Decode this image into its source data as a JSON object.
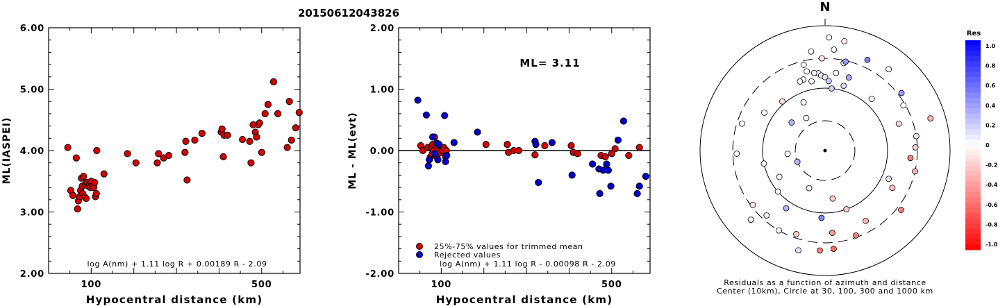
{
  "figure_title": "20150612043826",
  "chart_data": [
    {
      "type": "scatter",
      "xlabel": "Hypocentral distance (km)",
      "ylabel": "ML(IASPEI)",
      "xlim": [
        0,
        590
      ],
      "ylim": [
        2.0,
        6.0
      ],
      "x_ticks": [
        100,
        200,
        300,
        400,
        500
      ],
      "x_tick_labels": [
        "100",
        "",
        "",
        "",
        "500"
      ],
      "y_ticks": [
        2.0,
        3.0,
        4.0,
        5.0,
        6.0
      ],
      "y_tick_labels": [
        "2.00",
        "3.00",
        "4.00",
        "5.00",
        "6.00"
      ],
      "formula": "log A(nm) + 1.11 log R + 0.00189 R - 2.09",
      "series": [
        {
          "color": "#d40000",
          "points": [
            [
              45,
              4.05
            ],
            [
              52,
              3.35
            ],
            [
              57,
              3.27
            ],
            [
              65,
              3.88
            ],
            [
              68,
              3.05
            ],
            [
              70,
              3.18
            ],
            [
              73,
              3.25
            ],
            [
              75,
              3.35
            ],
            [
              77,
              3.55
            ],
            [
              79,
              3.42
            ],
            [
              80,
              3.3
            ],
            [
              82,
              3.58
            ],
            [
              84,
              3.25
            ],
            [
              86,
              3.45
            ],
            [
              88,
              3.22
            ],
            [
              90,
              3.48
            ],
            [
              93,
              3.42
            ],
            [
              96,
              3.45
            ],
            [
              98,
              3.4
            ],
            [
              100,
              3.5
            ],
            [
              103,
              3.42
            ],
            [
              106,
              3.4
            ],
            [
              108,
              3.48
            ],
            [
              110,
              3.25
            ],
            [
              112,
              3.3
            ],
            [
              113,
              4.0
            ],
            [
              130,
              3.62
            ],
            [
              185,
              3.95
            ],
            [
              205,
              3.8
            ],
            [
              255,
              3.8
            ],
            [
              258,
              3.95
            ],
            [
              270,
              3.88
            ],
            [
              282,
              3.92
            ],
            [
              320,
              3.97
            ],
            [
              322,
              4.15
            ],
            [
              325,
              3.52
            ],
            [
              343,
              4.17
            ],
            [
              360,
              4.28
            ],
            [
              405,
              4.3
            ],
            [
              407,
              4.35
            ],
            [
              410,
              3.9
            ],
            [
              412,
              4.25
            ],
            [
              420,
              4.25
            ],
            [
              455,
              4.18
            ],
            [
              472,
              4.15
            ],
            [
              475,
              3.8
            ],
            [
              480,
              4.42
            ],
            [
              485,
              4.3
            ],
            [
              488,
              4.22
            ],
            [
              492,
              4.42
            ],
            [
              495,
              4.45
            ],
            [
              500,
              3.97
            ],
            [
              508,
              4.6
            ],
            [
              515,
              4.75
            ],
            [
              528,
              5.12
            ],
            [
              538,
              4.6
            ],
            [
              560,
              4.05
            ],
            [
              565,
              4.8
            ],
            [
              570,
              4.17
            ],
            [
              580,
              4.37
            ],
            [
              588,
              4.62
            ]
          ]
        }
      ]
    },
    {
      "type": "scatter",
      "xlabel": "Hypocentral distance (km)",
      "ylabel": "ML - ML(evt)",
      "xlim": [
        0,
        590
      ],
      "ylim": [
        -2.0,
        2.0
      ],
      "x_ticks": [
        100,
        200,
        300,
        400,
        500
      ],
      "x_tick_labels": [
        "100",
        "",
        "",
        "",
        "500"
      ],
      "y_ticks": [
        -2.0,
        -1.0,
        0.0,
        1.0,
        2.0
      ],
      "y_tick_labels": [
        "-2.00",
        "-1.00",
        "0.00",
        "1.00",
        "2.00"
      ],
      "reference_line": 0,
      "annotation": "ML= 3.11",
      "formula": "log A(nm) + 1.11 log R - 0.00098 R - 2.09",
      "legend": [
        {
          "label": "25%-75% values for trimmed mean",
          "color": "#d40000"
        },
        {
          "label": "Rejected values",
          "color": "#0000cc"
        }
      ],
      "series": [
        {
          "name": "25%-75% values for trimmed mean",
          "color": "#d40000",
          "points": [
            [
              52,
              0.08
            ],
            [
              57,
              0.0
            ],
            [
              68,
              0.05
            ],
            [
              75,
              -0.1
            ],
            [
              77,
              0.05
            ],
            [
              79,
              -0.05
            ],
            [
              80,
              0.1
            ],
            [
              82,
              0.0
            ],
            [
              84,
              0.22
            ],
            [
              86,
              -0.08
            ],
            [
              88,
              0.08
            ],
            [
              90,
              -0.1
            ],
            [
              93,
              0.02
            ],
            [
              98,
              -0.03
            ],
            [
              100,
              0.05
            ],
            [
              103,
              0.0
            ],
            [
              106,
              0.05
            ],
            [
              110,
              -0.1
            ],
            [
              112,
              0.0
            ],
            [
              205,
              0.1
            ],
            [
              255,
              0.1
            ],
            [
              258,
              -0.03
            ],
            [
              270,
              0.0
            ],
            [
              282,
              0.0
            ],
            [
              320,
              -0.07
            ],
            [
              343,
              0.08
            ],
            [
              405,
              0.08
            ],
            [
              410,
              -0.03
            ],
            [
              420,
              -0.05
            ],
            [
              475,
              -0.08
            ],
            [
              485,
              -0.1
            ],
            [
              500,
              -0.05
            ],
            [
              508,
              0.03
            ],
            [
              540,
              -0.08
            ],
            [
              565,
              0.05
            ]
          ]
        },
        {
          "name": "Rejected values",
          "color": "#0000cc",
          "points": [
            [
              45,
              0.82
            ],
            [
              65,
              0.58
            ],
            [
              70,
              -0.25
            ],
            [
              72,
              -0.15
            ],
            [
              80,
              0.22
            ],
            [
              85,
              -0.05
            ],
            [
              90,
              0.12
            ],
            [
              92,
              -0.15
            ],
            [
              95,
              0.1
            ],
            [
              108,
              0.57
            ],
            [
              110,
              -0.18
            ],
            [
              113,
              -0.08
            ],
            [
              130,
              0.13
            ],
            [
              185,
              0.3
            ],
            [
              320,
              0.15
            ],
            [
              322,
              0.1
            ],
            [
              328,
              -0.52
            ],
            [
              360,
              0.13
            ],
            [
              407,
              -0.4
            ],
            [
              455,
              -0.22
            ],
            [
              470,
              -0.3
            ],
            [
              472,
              -0.7
            ],
            [
              480,
              -0.32
            ],
            [
              488,
              -0.22
            ],
            [
              492,
              -0.32
            ],
            [
              498,
              -0.58
            ],
            [
              515,
              0.17
            ],
            [
              528,
              0.48
            ],
            [
              560,
              -0.7
            ],
            [
              565,
              -0.58
            ],
            [
              580,
              -0.42
            ]
          ]
        }
      ]
    },
    {
      "type": "polar_scatter",
      "north_label": "N",
      "caption_line1": "Residuals as a function of azimuth and distance",
      "caption_line2": "Center (10km), Circle at 30, 100, 300 and 1000 km",
      "rings": [
        {
          "distance_km": 30,
          "style": "dashed"
        },
        {
          "distance_km": 100,
          "style": "solid"
        },
        {
          "distance_km": 300,
          "style": "dashed"
        },
        {
          "distance_km": 1000,
          "style": "solid"
        }
      ],
      "points": [
        {
          "az": 358,
          "dist": 300,
          "res": -0.1
        },
        {
          "az": 347,
          "dist": 200,
          "res": 0.0
        },
        {
          "az": 355,
          "dist": 175,
          "res": 0.0
        },
        {
          "az": 343,
          "dist": 155,
          "res": 0.05
        },
        {
          "az": 349,
          "dist": 135,
          "res": 0.0
        },
        {
          "az": 336,
          "dist": 70,
          "res": 0.0
        },
        {
          "az": 16,
          "dist": 120,
          "res": 0.15
        },
        {
          "az": 12,
          "dist": 270,
          "res": 0.0
        },
        {
          "az": 5,
          "dist": 420,
          "res": 0.0
        },
        {
          "az": 2,
          "dist": 650,
          "res": 0.0
        },
        {
          "az": 10,
          "dist": 600,
          "res": -0.05
        },
        {
          "az": 13,
          "dist": 290,
          "res": 0.4
        },
        {
          "az": 25,
          "dist": 400,
          "res": 0.5
        },
        {
          "az": 18,
          "dist": 170,
          "res": 0.35
        },
        {
          "az": 38,
          "dist": 450,
          "res": 0.0
        },
        {
          "az": 42,
          "dist": 130,
          "res": 0.0
        },
        {
          "az": 53,
          "dist": 340,
          "res": 0.4
        },
        {
          "az": 60,
          "dist": 280,
          "res": 0.0
        },
        {
          "az": 70,
          "dist": 180,
          "res": -0.15
        },
        {
          "az": 73,
          "dist": 580,
          "res": -0.3
        },
        {
          "az": 81,
          "dist": 300,
          "res": -0.1
        },
        {
          "az": 88,
          "dist": 280,
          "res": -0.2
        },
        {
          "az": 95,
          "dist": 235,
          "res": -0.5
        },
        {
          "az": 103,
          "dist": 300,
          "res": -0.3
        },
        {
          "az": 114,
          "dist": 130,
          "res": 0.1
        },
        {
          "az": 119,
          "dist": 170,
          "res": -0.25
        },
        {
          "az": 128,
          "dist": 350,
          "res": -0.5
        },
        {
          "az": 150,
          "dist": 200,
          "res": -0.3
        },
        {
          "az": 160,
          "dist": 100,
          "res": -0.2
        },
        {
          "az": 171,
          "dist": 60,
          "res": -0.2
        },
        {
          "az": 183,
          "dist": 120,
          "res": 0.5
        },
        {
          "az": 175,
          "dist": 210,
          "res": -0.4
        },
        {
          "az": 203,
          "dist": 45,
          "res": 0.05
        },
        {
          "az": 214,
          "dist": 130,
          "res": 0.3
        },
        {
          "az": 227,
          "dist": 420,
          "res": 0.05
        },
        {
          "az": 229,
          "dist": 100,
          "res": 0.0
        },
        {
          "az": 199,
          "dist": 260,
          "res": -0.2
        },
        {
          "az": 240,
          "dist": 70,
          "res": 0.0
        },
        {
          "az": 248,
          "dist": 30,
          "res": 0.3
        },
        {
          "az": 258,
          "dist": 100,
          "res": 0.05
        },
        {
          "az": 265,
          "dist": 40,
          "res": 0.0
        },
        {
          "az": 302,
          "dist": 140,
          "res": 0.0
        },
        {
          "az": 310,
          "dist": 50,
          "res": 0.3
        },
        {
          "az": 319,
          "dist": 110,
          "res": -0.1
        },
        {
          "az": 330,
          "dist": 40,
          "res": 0.0
        },
        {
          "az": 340,
          "dist": 150,
          "res": 0.0
        },
        {
          "az": 346,
          "dist": 260,
          "res": 0.0
        },
        {
          "az": 352,
          "dist": 180,
          "res": 0.05
        },
        {
          "az": 357,
          "dist": 160,
          "res": 0.1
        },
        {
          "az": 0,
          "dist": 150,
          "res": 0.1
        },
        {
          "az": 3,
          "dist": 130,
          "res": 0.2
        },
        {
          "az": 6,
          "dist": 100,
          "res": 0.2
        },
        {
          "az": 8,
          "dist": 180,
          "res": 0.0
        },
        {
          "az": 160,
          "dist": 280,
          "res": -0.5
        },
        {
          "az": 175,
          "dist": 380,
          "res": -0.6
        },
        {
          "az": 183,
          "dist": 400,
          "res": -0.5
        },
        {
          "az": 195,
          "dist": 450,
          "res": 0.1
        },
        {
          "az": 210,
          "dist": 300,
          "res": 0.0
        },
        {
          "az": 222,
          "dist": 250,
          "res": 0.05
        },
        {
          "az": 233,
          "dist": 280,
          "res": -0.1
        },
        {
          "az": 268,
          "dist": 260,
          "res": 0.0
        },
        {
          "az": 288,
          "dist": 250,
          "res": 0.0
        },
        {
          "az": 352,
          "dist": 400,
          "res": 0.0
        }
      ]
    },
    {
      "type": "colorbar",
      "title": "Res",
      "tick_labels": [
        "1.0",
        "0.8",
        "0.6",
        "0.4",
        "0.2",
        "0",
        "-0.2",
        "-0.4",
        "-0.6",
        "-0.8",
        "-1.0"
      ],
      "positive_color": "#0000ff",
      "negative_color": "#ff0000",
      "zero_color": "#ffffff"
    }
  ]
}
